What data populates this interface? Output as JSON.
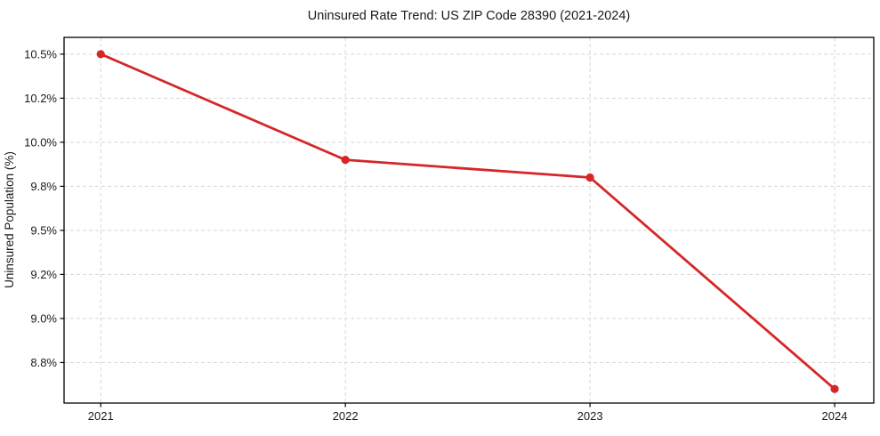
{
  "figure": {
    "background": "#ffffff"
  },
  "chart_data": {
    "type": "line",
    "title": "Uninsured Rate Trend: US ZIP Code 28390 (2021-2024)",
    "xlabel": "",
    "ylabel": "Uninsured Population (%)",
    "x": [
      2021,
      2022,
      2023,
      2024
    ],
    "x_tick_labels": [
      "2021",
      "2022",
      "2023",
      "2024"
    ],
    "values": [
      10.5,
      9.9,
      9.8,
      8.6
    ],
    "y_ticks": [
      10.5,
      10.25,
      10.0,
      9.75,
      9.5,
      9.25,
      9.0,
      8.75
    ],
    "y_tick_labels": [
      "10.5%",
      "10.2%",
      "10.0%",
      "9.8%",
      "9.5%",
      "9.2%",
      "9.0%",
      "8.8%"
    ],
    "xlim": [
      2020.85,
      2024.16
    ],
    "ylim": [
      8.52,
      10.595
    ],
    "grid": true,
    "grid_style": "dashed",
    "legend_position": "none",
    "marker": "circle",
    "colors": {
      "line": "#d62728",
      "marker": "#d62728",
      "grid": "#d8d8d8",
      "spine": "#000000",
      "text": "#1a1a1a"
    }
  }
}
